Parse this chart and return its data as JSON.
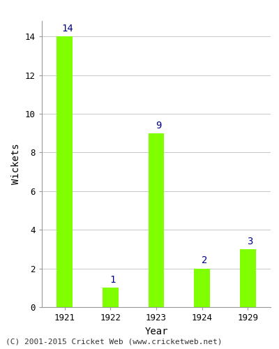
{
  "categories": [
    "1921",
    "1922",
    "1923",
    "1924",
    "1929"
  ],
  "values": [
    14,
    1,
    9,
    2,
    3
  ],
  "bar_color": "#7FFF00",
  "bar_edgecolor": "#7FFF00",
  "xlabel": "Year",
  "ylabel": "Wickets",
  "ylim": [
    0,
    14.8
  ],
  "yticks": [
    0,
    2,
    4,
    6,
    8,
    10,
    12,
    14
  ],
  "label_color": "#00008B",
  "label_fontsize": 10,
  "axis_label_fontsize": 10,
  "tick_fontsize": 9,
  "grid_color": "#cccccc",
  "background_color": "#ffffff",
  "footer_text": "(C) 2001-2015 Cricket Web (www.cricketweb.net)",
  "footer_fontsize": 8,
  "footer_color": "#333333",
  "bar_width": 0.35
}
